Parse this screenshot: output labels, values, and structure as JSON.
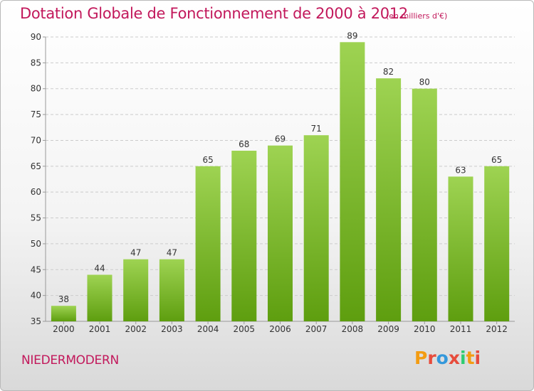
{
  "header": {
    "title": "Dotation Globale de Fonctionnement de 2000 à 2012",
    "subtitle": "(en milliers d'€)"
  },
  "footer": {
    "commune": "NIEDERMODERN",
    "logo_text": "Proxiti",
    "logo_colors": [
      "#f39c12",
      "#e74c3c",
      "#3498db",
      "#e74c3c",
      "#2ecc71",
      "#f39c12",
      "#e74c3c"
    ]
  },
  "colors": {
    "bar_top": "#9ed352",
    "bar_bottom": "#5e9e0f",
    "title": "#c2185b",
    "grid": "#cccccc",
    "axis_text": "#333333"
  },
  "chart_data": {
    "type": "bar",
    "title": "Dotation Globale de Fonctionnement de 2000 à 2012",
    "subtitle": "(en milliers d'€)",
    "xlabel": "",
    "ylabel": "",
    "categories": [
      "2000",
      "2001",
      "2002",
      "2003",
      "2004",
      "2005",
      "2006",
      "2007",
      "2008",
      "2009",
      "2010",
      "2011",
      "2012"
    ],
    "values": [
      38,
      44,
      47,
      47,
      65,
      68,
      69,
      71,
      89,
      82,
      80,
      63,
      65
    ],
    "ylim": [
      35,
      90
    ],
    "yticks": [
      35,
      40,
      45,
      50,
      55,
      60,
      65,
      70,
      75,
      80,
      85,
      90
    ],
    "grid": true,
    "legend": "none"
  }
}
